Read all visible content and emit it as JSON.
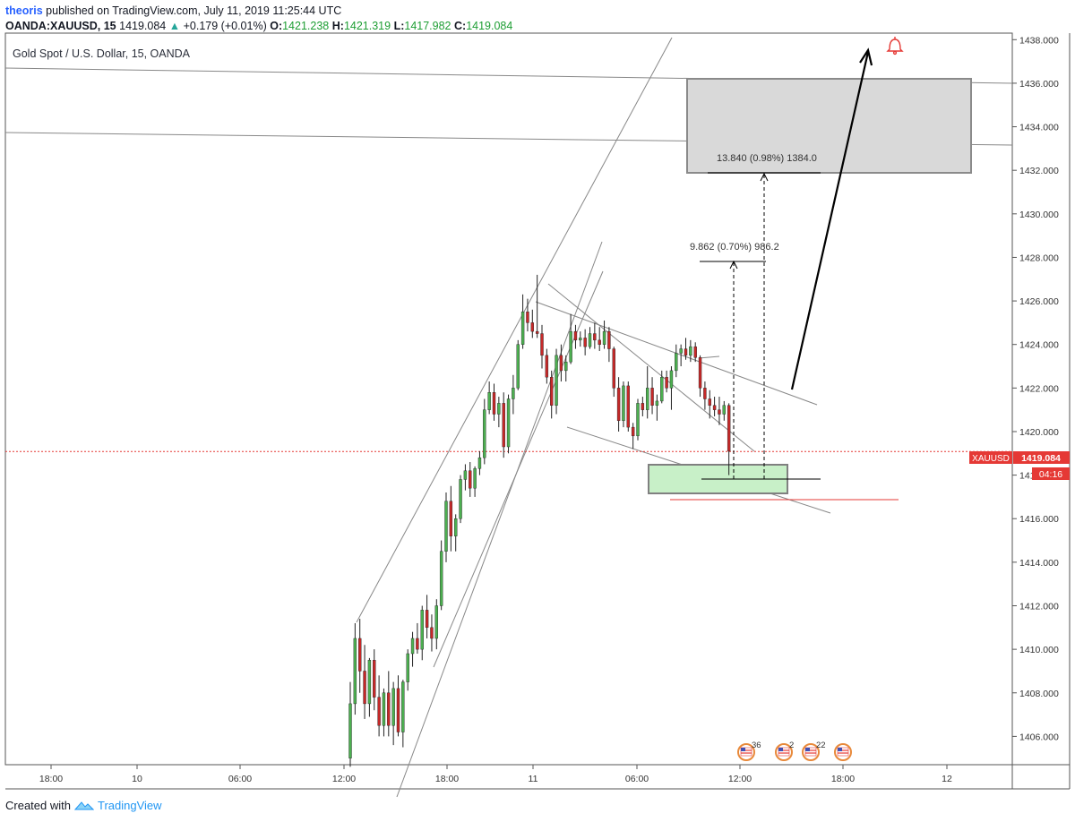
{
  "header": {
    "author": "theoris",
    "published_text": "published on TradingView.com, July 11, 2019 11:25:44 UTC",
    "symbol": "OANDA:XAUUSD, 15",
    "last": "1419.084",
    "change": "+0.179 (+0.01%)",
    "open_label": "O:",
    "open": "1421.238",
    "high_label": "H:",
    "high": "1421.319",
    "low_label": "L:",
    "low": "1417.982",
    "close_label": "C:",
    "close": "1419.084"
  },
  "chart_title": "Gold Spot / U.S. Dollar, 15, OANDA",
  "footer": {
    "created_with": "Created with",
    "brand": "TradingView"
  },
  "colors": {
    "up": "#26a69a",
    "down": "#ef5350",
    "price_line": "#e53935",
    "target_box": "#d9d9d9",
    "support_box": "#c8f0c8"
  },
  "chart_data": {
    "type": "candlestick",
    "instrument": "XAUUSD",
    "interval": "15",
    "ylim": [
      1404.7,
      1438.3
    ],
    "y_ticks": [
      "1406.000",
      "1408.000",
      "1410.000",
      "1412.000",
      "1414.000",
      "1416.000",
      "1418.000",
      "1420.000",
      "1422.000",
      "1424.000",
      "1426.000",
      "1428.000",
      "1430.000",
      "1432.000",
      "1434.000",
      "1436.000",
      "1438.000"
    ],
    "x_ticks": [
      "18:00",
      "10",
      "06:00",
      "12:00",
      "18:00",
      "11",
      "06:00",
      "12:00",
      "18:00",
      "12"
    ],
    "current_price": 1419.084,
    "price_tag": "1419.084",
    "symbol_tag": "XAUUSD",
    "countdown": "04:16",
    "candles": [
      [
        1405.0,
        1408.5,
        1404.6,
        1407.5
      ],
      [
        1407.5,
        1411.2,
        1407.0,
        1410.5
      ],
      [
        1410.5,
        1411.4,
        1408.0,
        1409.0
      ],
      [
        1409.0,
        1410.2,
        1406.8,
        1407.5
      ],
      [
        1407.5,
        1409.6,
        1406.9,
        1409.5
      ],
      [
        1409.5,
        1410.0,
        1407.2,
        1407.8
      ],
      [
        1407.8,
        1408.8,
        1406.0,
        1406.5
      ],
      [
        1406.5,
        1408.2,
        1406.0,
        1408.0
      ],
      [
        1408.0,
        1409.0,
        1406.0,
        1406.5
      ],
      [
        1406.5,
        1408.5,
        1405.6,
        1408.2
      ],
      [
        1408.2,
        1408.8,
        1406.0,
        1406.2
      ],
      [
        1406.2,
        1408.6,
        1405.5,
        1408.5
      ],
      [
        1408.5,
        1410.0,
        1408.1,
        1409.8
      ],
      [
        1409.8,
        1410.8,
        1409.2,
        1410.5
      ],
      [
        1410.5,
        1411.2,
        1409.8,
        1410.0
      ],
      [
        1410.0,
        1412.0,
        1409.5,
        1411.8
      ],
      [
        1411.8,
        1412.5,
        1410.5,
        1411.0
      ],
      [
        1411.0,
        1411.6,
        1409.9,
        1410.5
      ],
      [
        1410.5,
        1412.3,
        1410.0,
        1412.0
      ],
      [
        1412.0,
        1415.0,
        1411.8,
        1414.5
      ],
      [
        1414.5,
        1417.2,
        1414.0,
        1416.8
      ],
      [
        1416.8,
        1417.5,
        1414.5,
        1415.2
      ],
      [
        1415.2,
        1416.2,
        1414.5,
        1416.0
      ],
      [
        1416.0,
        1418.0,
        1415.8,
        1417.8
      ],
      [
        1417.8,
        1418.5,
        1417.3,
        1418.2
      ],
      [
        1418.2,
        1418.6,
        1417.0,
        1417.4
      ],
      [
        1417.4,
        1418.4,
        1417.0,
        1418.3
      ],
      [
        1418.3,
        1419.1,
        1418.0,
        1418.8
      ],
      [
        1418.8,
        1421.5,
        1418.5,
        1421.0
      ],
      [
        1421.0,
        1422.3,
        1420.8,
        1421.8
      ],
      [
        1421.8,
        1422.2,
        1420.5,
        1420.8
      ],
      [
        1420.8,
        1421.6,
        1420.2,
        1421.3
      ],
      [
        1421.3,
        1421.8,
        1418.8,
        1419.3
      ],
      [
        1419.3,
        1421.7,
        1419.0,
        1421.5
      ],
      [
        1421.5,
        1422.6,
        1420.8,
        1422.0
      ],
      [
        1422.0,
        1424.2,
        1421.9,
        1424.0
      ],
      [
        1424.0,
        1426.3,
        1423.8,
        1425.5
      ],
      [
        1425.5,
        1426.1,
        1424.6,
        1425.0
      ],
      [
        1425.0,
        1425.6,
        1424.3,
        1424.6
      ],
      [
        1424.6,
        1427.2,
        1424.3,
        1424.5
      ],
      [
        1424.5,
        1424.9,
        1422.9,
        1423.5
      ],
      [
        1423.5,
        1423.8,
        1422.2,
        1422.5
      ],
      [
        1422.5,
        1422.8,
        1420.6,
        1421.2
      ],
      [
        1421.2,
        1423.8,
        1420.8,
        1423.5
      ],
      [
        1423.5,
        1424.0,
        1422.3,
        1422.8
      ],
      [
        1422.8,
        1423.5,
        1422.3,
        1423.2
      ],
      [
        1423.2,
        1425.4,
        1423.1,
        1424.6
      ],
      [
        1424.6,
        1424.9,
        1423.8,
        1424.2
      ],
      [
        1424.2,
        1424.6,
        1423.9,
        1424.3
      ],
      [
        1424.3,
        1424.7,
        1423.5,
        1423.9
      ],
      [
        1423.9,
        1424.8,
        1423.8,
        1424.5
      ],
      [
        1424.5,
        1425.0,
        1423.8,
        1424.2
      ],
      [
        1424.2,
        1424.8,
        1423.7,
        1424.0
      ],
      [
        1424.0,
        1425.1,
        1423.8,
        1424.6
      ],
      [
        1424.6,
        1424.8,
        1423.2,
        1423.8
      ],
      [
        1423.8,
        1423.9,
        1421.6,
        1422.0
      ],
      [
        1422.0,
        1422.5,
        1420.0,
        1420.5
      ],
      [
        1420.5,
        1422.3,
        1420.2,
        1422.1
      ],
      [
        1422.1,
        1422.3,
        1420.0,
        1420.2
      ],
      [
        1420.2,
        1420.4,
        1419.2,
        1419.8
      ],
      [
        1419.8,
        1421.5,
        1419.6,
        1421.3
      ],
      [
        1421.3,
        1421.6,
        1420.7,
        1421.0
      ],
      [
        1421.0,
        1423.0,
        1420.6,
        1422.0
      ],
      [
        1422.0,
        1422.5,
        1420.8,
        1421.2
      ],
      [
        1421.2,
        1421.7,
        1420.5,
        1421.4
      ],
      [
        1421.4,
        1422.8,
        1421.3,
        1422.5
      ],
      [
        1422.5,
        1422.8,
        1421.8,
        1422.0
      ],
      [
        1422.0,
        1423.0,
        1421.0,
        1422.8
      ],
      [
        1422.8,
        1424.0,
        1422.5,
        1423.6
      ],
      [
        1423.6,
        1424.0,
        1423.0,
        1423.8
      ],
      [
        1423.8,
        1424.3,
        1423.3,
        1423.5
      ],
      [
        1423.5,
        1424.2,
        1423.2,
        1423.9
      ],
      [
        1423.9,
        1424.1,
        1423.2,
        1423.4
      ],
      [
        1423.4,
        1423.5,
        1421.6,
        1422.0
      ],
      [
        1422.0,
        1422.3,
        1421.0,
        1421.5
      ],
      [
        1421.5,
        1421.9,
        1420.6,
        1421.2
      ],
      [
        1421.2,
        1421.6,
        1420.7,
        1421.0
      ],
      [
        1421.0,
        1421.6,
        1420.3,
        1420.8
      ],
      [
        1420.8,
        1421.4,
        1420.5,
        1421.2
      ],
      [
        1421.2,
        1421.3,
        1418.0,
        1419.1
      ]
    ]
  },
  "annotations": {
    "measure1": "9.862 (0.70%) 986.2",
    "measure2": "13.840 (0.98%) 1384.0",
    "events": [
      {
        "count": "36"
      },
      {
        "count": "2"
      },
      {
        "count": "22"
      },
      {
        "count": ""
      }
    ]
  }
}
